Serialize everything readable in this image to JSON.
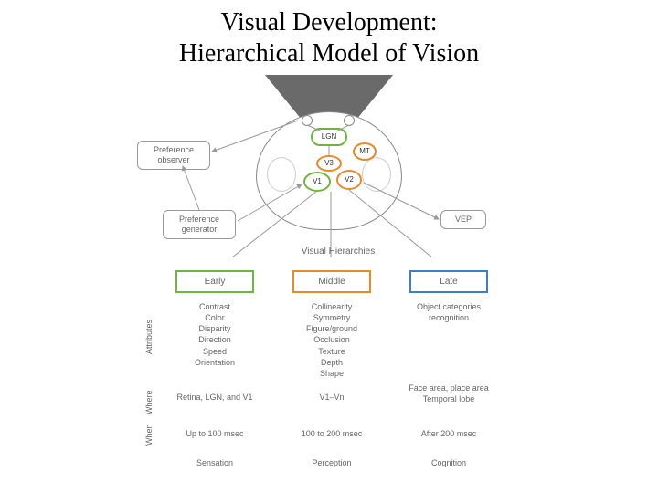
{
  "title_line1": "Visual Development:",
  "title_line2": "Hierarchical Model of Vision",
  "colors": {
    "early": "#6fb53f",
    "middle": "#e68a2e",
    "late": "#3b7fc4",
    "text_gray": "#666666",
    "border_gray": "#999999",
    "stimulus_fill": "#6a6a6a",
    "bg": "#ffffff"
  },
  "brain": {
    "lgn": "LGN",
    "v1": "V1",
    "v2": "V2",
    "v3": "V3",
    "mt": "MT"
  },
  "boxes": {
    "pref_obs": "Preference observer",
    "pref_gen": "Preference generator",
    "vep": "VEP"
  },
  "section_label": "Visual Hierarchies",
  "stages": {
    "early": "Early",
    "middle": "Middle",
    "late": "Late"
  },
  "row_labels": {
    "attributes": "Attributes",
    "where": "Where",
    "when": "When"
  },
  "attributes": {
    "early": [
      "Contrast",
      "Color",
      "Disparity",
      "Direction",
      "Speed",
      "Orientation"
    ],
    "middle": [
      "Collinearity",
      "Symmetry",
      "Figure/ground",
      "Occlusion",
      "Texture",
      "Depth",
      "Shape"
    ],
    "late": [
      "Object categories",
      "recognition"
    ]
  },
  "where": {
    "early": "Retina, LGN, and V1",
    "middle": "V1–Vn",
    "late": "Face area, place area\nTemporal lobe"
  },
  "when": {
    "early": "Up to 100 msec",
    "middle": "100 to 200 msec",
    "late": "After 200 msec"
  },
  "cognition": {
    "early": "Sensation",
    "middle": "Perception",
    "late": "Cognition"
  },
  "fonts": {
    "title_size_pt": 28,
    "body_size_pt": 9,
    "stage_size_pt": 10
  }
}
